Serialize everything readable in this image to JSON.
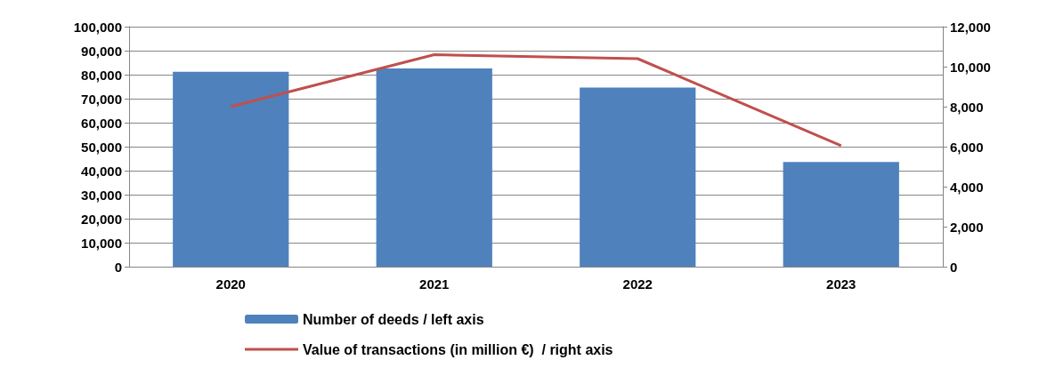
{
  "chart_data": {
    "type": "bar",
    "categories": [
      "2020",
      "2021",
      "2022",
      "2023"
    ],
    "series": [
      {
        "name": "Number of deeds / left axis",
        "color": "#4f81bd",
        "values": [
          81200,
          82600,
          74600,
          43600
        ]
      },
      {
        "name": "Value of transactions (in million €)  / right axis",
        "color": "#c0504d",
        "type": "line",
        "axis": "y2",
        "values": [
          8000,
          10600,
          10400,
          6050
        ]
      }
    ],
    "ylim": [
      0,
      100000
    ],
    "yticks": [
      0,
      {
        "value": 10000,
        "label": "10,000"
      },
      {
        "value": 20000,
        "label": "20,000"
      },
      {
        "value": 30000,
        "label": "30,000"
      },
      {
        "value": 40000,
        "label": "40,000"
      },
      {
        "value": 50000,
        "label": "50,000"
      },
      {
        "value": 60000,
        "label": "60,000"
      },
      {
        "value": 70000,
        "label": "70,000"
      },
      {
        "value": 80000,
        "label": "80,000"
      },
      {
        "value": 90000,
        "label": "90,000"
      },
      {
        "value": 100000,
        "label": "100,000"
      }
    ],
    "y2lim": [
      0,
      12000
    ],
    "y2ticks": [
      0,
      {
        "value": 2000,
        "label": "2,000"
      },
      {
        "value": 4000,
        "label": "4,000"
      },
      {
        "value": 6000,
        "label": "6,000"
      },
      {
        "value": 8000,
        "label": "8,000"
      },
      {
        "value": 10000,
        "label": "10,000"
      },
      {
        "value": 12000,
        "label": "12,000"
      }
    ],
    "grid": "y",
    "legend": "bottom",
    "marker": "none",
    "line_style": "solid"
  }
}
